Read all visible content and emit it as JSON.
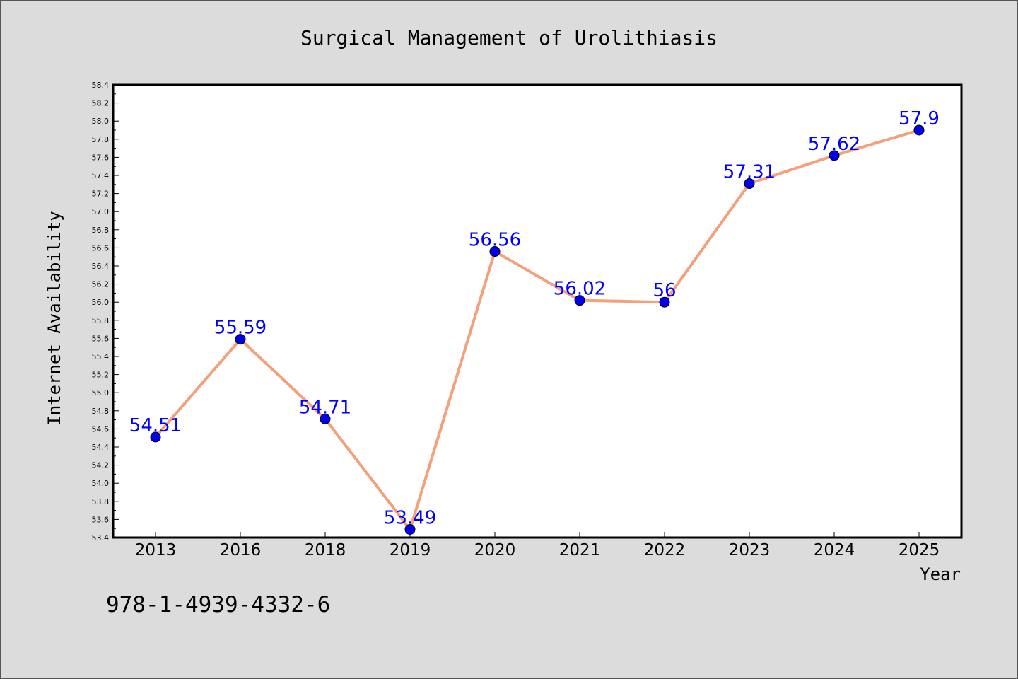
{
  "chart_data": {
    "type": "line",
    "title": "Surgical Management of Urolithiasis",
    "xlabel": "Year",
    "ylabel": "Internet Availability",
    "categories": [
      "2013",
      "2016",
      "2018",
      "2019",
      "2020",
      "2021",
      "2022",
      "2023",
      "2024",
      "2025"
    ],
    "series": [
      {
        "values": [
          54.51,
          55.59,
          54.71,
          53.49,
          56.56,
          56.02,
          56,
          57.31,
          57.62,
          57.9
        ],
        "line_color": "#f4a07a",
        "marker_color": "#0000ee",
        "label_color": "#0000ff"
      }
    ],
    "data_labels": [
      "54.51",
      "55.59",
      "54.71",
      "53.49",
      "56.56",
      "56.02",
      "56",
      "57.31",
      "57.62",
      "57.9"
    ],
    "ylim": [
      53.4,
      58.4
    ],
    "yticks": [
      "53.4",
      "53.6",
      "53.8",
      "54.0",
      "54.2",
      "54.4",
      "54.6",
      "54.8",
      "55.0",
      "55.2",
      "55.4",
      "55.6",
      "55.8",
      "56.0",
      "56.2",
      "56.4",
      "56.6",
      "56.8",
      "57.0",
      "57.2",
      "57.4",
      "57.6",
      "57.8",
      "58.0",
      "58.2",
      "58.4"
    ],
    "grid": false,
    "legend": "none"
  },
  "annotation": "978-1-4939-4332-6",
  "colors": {
    "background": "#dcdcdc",
    "plot_background": "#ffffff"
  }
}
